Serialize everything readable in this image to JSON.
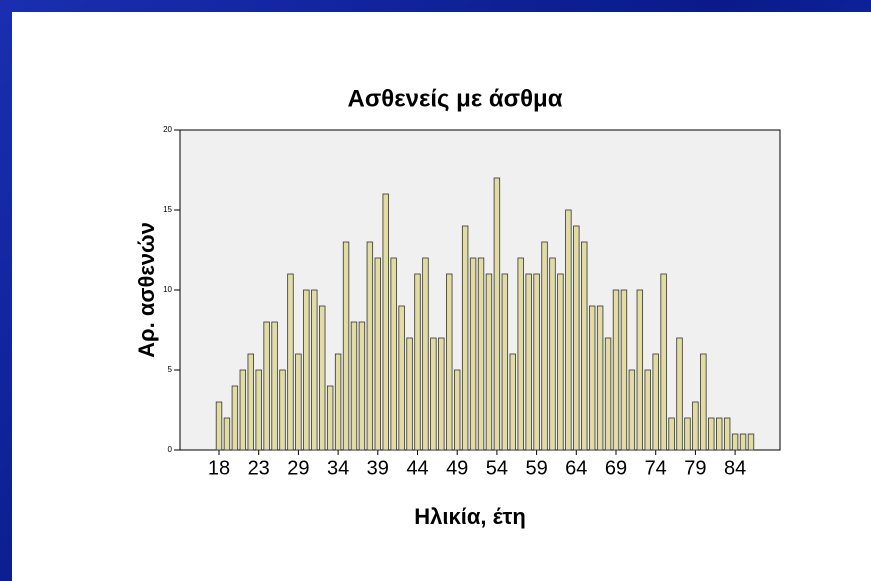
{
  "chart_data": {
    "type": "bar",
    "title": "Ασθενείς με άσθμα",
    "x_label": "Ηλικία, έτη",
    "y_label": "Αρ. ασθενών",
    "categories": [
      "18",
      null,
      null,
      null,
      null,
      "23",
      null,
      null,
      null,
      null,
      "29",
      null,
      null,
      null,
      null,
      "34",
      null,
      null,
      null,
      null,
      "39",
      null,
      null,
      null,
      null,
      "44",
      null,
      null,
      null,
      null,
      "49",
      null,
      null,
      null,
      null,
      "54",
      null,
      null,
      null,
      null,
      "59",
      null,
      null,
      null,
      null,
      "64",
      null,
      null,
      null,
      null,
      "69",
      null,
      null,
      null,
      null,
      "74",
      null,
      null,
      null,
      null,
      "79",
      null,
      null,
      null,
      null,
      "84",
      null,
      null
    ],
    "values": [
      3,
      2,
      4,
      5,
      6,
      5,
      8,
      8,
      5,
      11,
      6,
      10,
      10,
      9,
      4,
      6,
      13,
      8,
      8,
      13,
      12,
      16,
      12,
      9,
      7,
      11,
      12,
      7,
      7,
      11,
      5,
      14,
      12,
      12,
      11,
      17,
      11,
      6,
      12,
      11,
      11,
      13,
      12,
      11,
      15,
      14,
      13,
      9,
      9,
      7,
      10,
      10,
      5,
      10,
      5,
      6,
      11,
      2,
      7,
      2,
      3,
      6,
      2,
      2,
      2,
      1,
      1,
      1
    ],
    "color": "#e2dca2",
    "ylim": [
      0,
      20
    ],
    "yticks": [
      0,
      5,
      10,
      15,
      20
    ],
    "grid": false
  }
}
